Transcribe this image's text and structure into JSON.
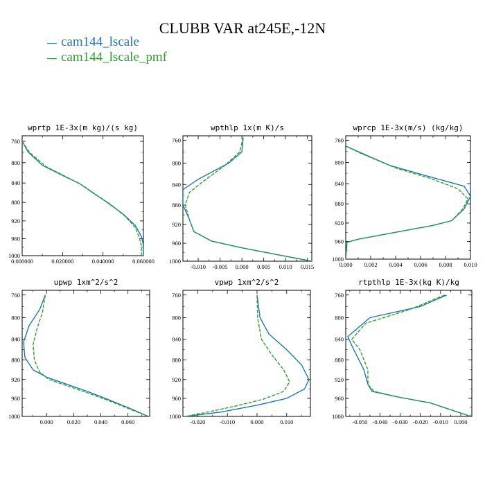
{
  "figure": {
    "title": "CLUBB VAR at245E,-12N"
  },
  "legend": [
    {
      "label": "cam144_lscale",
      "color": "#1f77b4"
    },
    {
      "label": "cam144_lscale_pmf",
      "color": "#2ca02c"
    }
  ],
  "chart_data": [
    {
      "type": "line",
      "title": "wprtp  1E-3x(m kg)/(s kg)",
      "xlim": [
        0.0,
        0.06
      ],
      "ylim": [
        1000,
        750
      ],
      "y_scale": "log",
      "x_ticks": [
        0.0,
        0.02,
        0.04,
        0.06
      ],
      "x_tick_labels": [
        "0.000000",
        "0.020000",
        "0.040000",
        "0.060000"
      ],
      "y_ticks": [
        760,
        800,
        840,
        880,
        920,
        960,
        1000
      ],
      "series": [
        {
          "name": "cam144_lscale",
          "x": [
            0.0,
            0.003,
            0.01,
            0.02,
            0.028,
            0.035,
            0.042,
            0.05,
            0.056,
            0.059,
            0.06,
            0.06
          ],
          "y": [
            760,
            780,
            805,
            825,
            840,
            860,
            880,
            905,
            930,
            955,
            975,
            1000
          ]
        },
        {
          "name": "cam144_lscale_pmf",
          "x": [
            0.0,
            0.0035,
            0.012,
            0.022,
            0.03,
            0.037,
            0.044,
            0.051,
            0.056,
            0.058,
            0.059,
            0.059
          ],
          "y": [
            760,
            780,
            808,
            828,
            845,
            865,
            885,
            910,
            935,
            958,
            978,
            1000
          ]
        }
      ]
    },
    {
      "type": "line",
      "title": "wpthlp  1x(m K)/s",
      "xlim": [
        -0.0135,
        0.016
      ],
      "ylim": [
        1000,
        752
      ],
      "y_scale": "log",
      "x_ticks": [
        -0.01,
        -0.005,
        0.0,
        0.005,
        0.01,
        0.015
      ],
      "x_tick_labels": [
        "-0.010",
        "-0.005",
        "0.000",
        "0.005",
        "0.010",
        "0.015"
      ],
      "y_ticks": [
        760,
        800,
        840,
        880,
        920,
        960,
        1000
      ],
      "series": [
        {
          "name": "cam144_lscale",
          "x": [
            0.0003,
            0.0,
            -0.003,
            -0.01,
            -0.0135,
            -0.0135,
            -0.012,
            -0.011,
            -0.007,
            0.0,
            0.008,
            0.016
          ],
          "y": [
            755,
            780,
            800,
            830,
            850,
            880,
            910,
            935,
            955,
            970,
            985,
            1000
          ]
        },
        {
          "name": "cam144_lscale_pmf",
          "x": [
            0.0003,
            -0.0005,
            -0.004,
            -0.009,
            -0.012,
            -0.013,
            -0.012,
            -0.011,
            -0.007,
            0.0,
            0.008,
            0.016
          ],
          "y": [
            755,
            780,
            805,
            835,
            855,
            880,
            910,
            935,
            955,
            970,
            985,
            1000
          ]
        }
      ]
    },
    {
      "type": "line",
      "title": "wprcp  1E-3x(m/s) (kg/kg)",
      "xlim": [
        0.0,
        0.01
      ],
      "ylim": [
        1000,
        752
      ],
      "y_scale": "log",
      "x_ticks": [
        0.0,
        0.002,
        0.004,
        0.006,
        0.008,
        0.01
      ],
      "x_tick_labels": [
        "0.000",
        "0.002",
        "0.004",
        "0.006",
        "0.008",
        "0.010"
      ],
      "y_ticks": [
        760,
        800,
        840,
        880,
        920,
        960,
        1000
      ],
      "series": [
        {
          "name": "cam144_lscale",
          "x": [
            0.0,
            0.001,
            0.0035,
            0.0065,
            0.0095,
            0.01,
            0.0095,
            0.0085,
            0.007,
            0.001,
            0.0001,
            0.0
          ],
          "y": [
            770,
            780,
            805,
            825,
            845,
            865,
            890,
            915,
            925,
            955,
            962,
            1000
          ]
        },
        {
          "name": "cam144_lscale_pmf",
          "x": [
            0.0,
            0.0012,
            0.004,
            0.0068,
            0.009,
            0.0098,
            0.0094,
            0.0085,
            0.007,
            0.001,
            0.0001,
            0.0
          ],
          "y": [
            770,
            783,
            810,
            830,
            850,
            870,
            890,
            915,
            925,
            955,
            962,
            1000
          ]
        }
      ]
    },
    {
      "type": "line",
      "title": "upwp  1xm^2/s^2",
      "xlim": [
        -0.018,
        0.076
      ],
      "ylim": [
        1000,
        752
      ],
      "y_scale": "log",
      "x_ticks": [
        0.0,
        0.02,
        0.04,
        0.06
      ],
      "x_tick_labels": [
        "0.000",
        "0.020",
        "0.040",
        "0.060"
      ],
      "y_ticks": [
        760,
        800,
        840,
        880,
        920,
        960,
        1000
      ],
      "series": [
        {
          "name": "cam144_lscale",
          "x": [
            -0.001,
            -0.005,
            -0.013,
            -0.017,
            -0.016,
            -0.01,
            0.0,
            0.015,
            0.03,
            0.045,
            0.06,
            0.075
          ],
          "y": [
            760,
            785,
            815,
            845,
            875,
            900,
            915,
            930,
            945,
            962,
            980,
            1000
          ]
        },
        {
          "name": "cam144_lscale_pmf",
          "x": [
            -0.001,
            -0.003,
            -0.007,
            -0.01,
            -0.009,
            -0.005,
            0.002,
            0.015,
            0.03,
            0.045,
            0.06,
            0.075
          ],
          "y": [
            760,
            790,
            820,
            850,
            880,
            905,
            920,
            933,
            948,
            964,
            982,
            1000
          ]
        }
      ]
    },
    {
      "type": "line",
      "title": "vpwp  1xm^2/s^2",
      "xlim": [
        -0.025,
        0.018
      ],
      "ylim": [
        1000,
        752
      ],
      "y_scale": "log",
      "x_ticks": [
        -0.02,
        -0.01,
        0.0,
        0.01
      ],
      "x_tick_labels": [
        "-0.020",
        "-0.010",
        "0.000",
        "0.010"
      ],
      "y_ticks": [
        760,
        800,
        840,
        880,
        920,
        960,
        1000
      ],
      "series": [
        {
          "name": "cam144_lscale",
          "x": [
            0.0,
            0.001,
            0.004,
            0.01,
            0.015,
            0.0175,
            0.016,
            0.01,
            0.0,
            -0.012,
            -0.024
          ],
          "y": [
            760,
            800,
            830,
            860,
            890,
            920,
            940,
            960,
            975,
            990,
            1000
          ]
        },
        {
          "name": "cam144_lscale_pmf",
          "x": [
            0.0,
            0.0002,
            0.0015,
            0.005,
            0.009,
            0.011,
            0.009,
            0.002,
            -0.008,
            -0.018,
            -0.024
          ],
          "y": [
            760,
            800,
            840,
            870,
            900,
            925,
            945,
            962,
            978,
            992,
            1000
          ]
        }
      ]
    },
    {
      "type": "line",
      "title": "rtpthlp  1E-3x(kg K)/kg",
      "xlim": [
        -0.057,
        0.0055
      ],
      "ylim": [
        1000,
        752
      ],
      "y_scale": "log",
      "x_ticks": [
        -0.05,
        -0.04,
        -0.03,
        -0.02,
        -0.01,
        0.0
      ],
      "x_tick_labels": [
        "-0.050",
        "-0.040",
        "-0.030",
        "-0.020",
        "-0.010",
        "0.000"
      ],
      "y_ticks": [
        760,
        800,
        840,
        880,
        920,
        960,
        1000
      ],
      "series": [
        {
          "name": "cam144_lscale",
          "x": [
            -0.007,
            -0.02,
            -0.045,
            -0.056,
            -0.053,
            -0.048,
            -0.046,
            -0.044,
            -0.03,
            -0.015,
            -0.005,
            0.005
          ],
          "y": [
            760,
            780,
            800,
            835,
            860,
            900,
            930,
            945,
            958,
            970,
            985,
            1000
          ]
        },
        {
          "name": "cam144_lscale_pmf",
          "x": [
            -0.008,
            -0.025,
            -0.047,
            -0.054,
            -0.05,
            -0.046,
            -0.046,
            -0.043,
            -0.03,
            -0.015,
            -0.005,
            0.005
          ],
          "y": [
            760,
            785,
            810,
            840,
            860,
            900,
            930,
            945,
            958,
            970,
            985,
            1000
          ]
        }
      ]
    }
  ]
}
